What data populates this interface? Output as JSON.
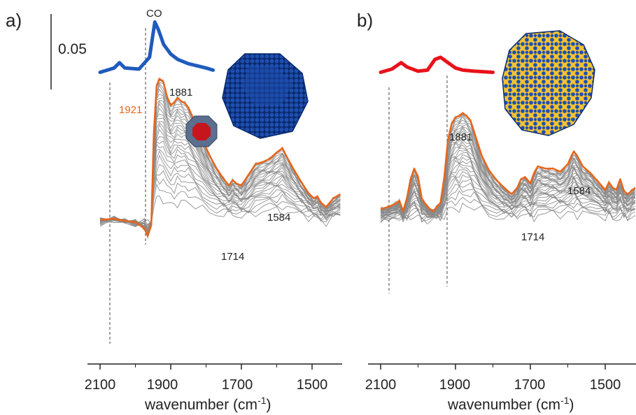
{
  "chart_data": [
    {
      "panel": "a)",
      "type": "line",
      "xlabel": "wavenumber (cm",
      "xlabel_sup": "-1",
      "xlabel_close": ")",
      "xlim": [
        2100,
        1420
      ],
      "xticks": [
        "2100",
        "1900",
        "1700",
        "1500"
      ],
      "scale_bar_label": "0.05",
      "top_label": "CO",
      "peak_labels": [
        "1921",
        "1881",
        "1714",
        "1584"
      ],
      "reference_color": "#1f5bbd",
      "highlight_color": "#e8651a",
      "family_color": "#8a8a8a",
      "reference_series": {
        "x": [
          2100,
          2060,
          2045,
          2030,
          1990,
          1960,
          1945,
          1935,
          1920,
          1900,
          1880,
          1850,
          1800,
          1780
        ],
        "y": [
          0.018,
          0.022,
          0.027,
          0.022,
          0.021,
          0.032,
          0.065,
          0.058,
          0.044,
          0.035,
          0.03,
          0.026,
          0.022,
          0.02
        ]
      },
      "final_series": {
        "x": [
          2100,
          2060,
          2030,
          2000,
          1975,
          1965,
          1955,
          1948,
          1940,
          1932,
          1921,
          1910,
          1900,
          1890,
          1881,
          1870,
          1860,
          1850,
          1830,
          1810,
          1790,
          1770,
          1750,
          1735,
          1725,
          1714,
          1700,
          1680,
          1660,
          1640,
          1620,
          1600,
          1584,
          1570,
          1550,
          1530,
          1510,
          1495,
          1485,
          1475,
          1460,
          1440,
          1420
        ],
        "y": [
          -0.12,
          -0.119,
          -0.121,
          -0.122,
          -0.128,
          -0.135,
          -0.125,
          -0.04,
          0.005,
          0.012,
          0.009,
          -0.005,
          -0.013,
          -0.01,
          -0.006,
          -0.009,
          -0.011,
          -0.015,
          -0.03,
          -0.045,
          -0.06,
          -0.072,
          -0.082,
          -0.088,
          -0.083,
          -0.086,
          -0.088,
          -0.078,
          -0.068,
          -0.066,
          -0.063,
          -0.057,
          -0.053,
          -0.062,
          -0.074,
          -0.085,
          -0.095,
          -0.1,
          -0.098,
          -0.104,
          -0.108,
          -0.1,
          -0.096
        ]
      },
      "family_count": 28
    },
    {
      "panel": "b)",
      "type": "line",
      "xlabel": "wavenumber (cm",
      "xlabel_sup": "-1",
      "xlabel_close": ")",
      "xlim": [
        2100,
        1420
      ],
      "xticks": [
        "2100",
        "1900",
        "1700",
        "1500"
      ],
      "peak_labels": [
        "1881",
        "1714",
        "1584"
      ],
      "reference_color": "#e8121a",
      "highlight_color": "#e8651a",
      "family_color": "#8a8a8a",
      "reference_series": {
        "x": [
          2100,
          2070,
          2045,
          2030,
          2000,
          1975,
          1955,
          1940,
          1920,
          1900,
          1880,
          1850,
          1800
        ],
        "y": [
          0.018,
          0.021,
          0.027,
          0.023,
          0.019,
          0.02,
          0.03,
          0.032,
          0.027,
          0.022,
          0.02,
          0.019,
          0.018
        ]
      },
      "final_series": {
        "x": [
          2100,
          2080,
          2060,
          2050,
          2040,
          2030,
          2020,
          2010,
          2000,
          1990,
          1975,
          1960,
          1950,
          1940,
          1930,
          1920,
          1910,
          1900,
          1890,
          1881,
          1870,
          1860,
          1850,
          1830,
          1810,
          1790,
          1770,
          1750,
          1735,
          1725,
          1714,
          1700,
          1690,
          1680,
          1660,
          1640,
          1620,
          1600,
          1590,
          1584,
          1575,
          1560,
          1540,
          1520,
          1500,
          1490,
          1480,
          1470,
          1460,
          1450,
          1440,
          1430,
          1420
        ],
        "y": [
          -0.11,
          -0.108,
          -0.105,
          -0.102,
          -0.112,
          -0.1,
          -0.082,
          -0.072,
          -0.08,
          -0.1,
          -0.108,
          -0.112,
          -0.108,
          -0.104,
          -0.08,
          -0.045,
          -0.03,
          -0.024,
          -0.023,
          -0.02,
          -0.023,
          -0.027,
          -0.038,
          -0.06,
          -0.074,
          -0.083,
          -0.09,
          -0.096,
          -0.09,
          -0.082,
          -0.08,
          -0.086,
          -0.076,
          -0.07,
          -0.072,
          -0.072,
          -0.075,
          -0.068,
          -0.06,
          -0.056,
          -0.06,
          -0.07,
          -0.076,
          -0.084,
          -0.092,
          -0.085,
          -0.09,
          -0.092,
          -0.082,
          -0.093,
          -0.096,
          -0.093,
          -0.09
        ]
      },
      "family_count": 34
    }
  ]
}
